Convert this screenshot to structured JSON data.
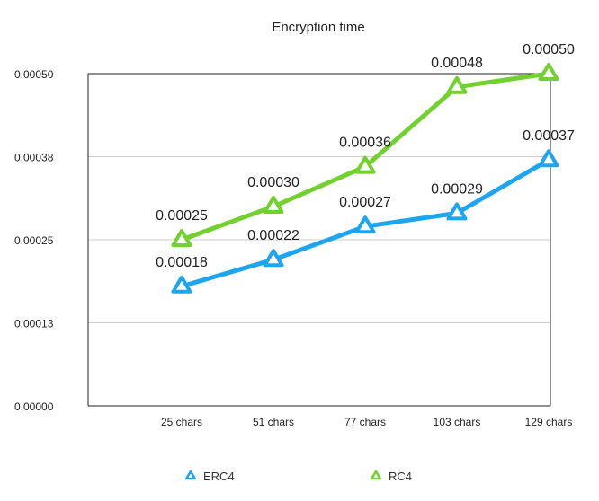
{
  "chart_data": {
    "type": "line",
    "title": "Encryption time",
    "xlabel": "",
    "ylabel": "",
    "categories": [
      "25 chars",
      "51 chars",
      "77 chars",
      "103 chars",
      "129 chars"
    ],
    "ylim": [
      0,
      0.0005
    ],
    "yticks": [
      "0.00000",
      "0.00013",
      "0.00025",
      "0.00038",
      "0.00050"
    ],
    "grid": true,
    "legend": "bottom",
    "series": [
      {
        "name": "ERC4",
        "color": "#1ea5f0",
        "marker": "triangle",
        "values": [
          0.00018,
          0.00022,
          0.00027,
          0.00029,
          0.00037
        ],
        "labels": [
          "0.00018",
          "0.00022",
          "0.00027",
          "0.00029",
          "0.00037"
        ]
      },
      {
        "name": "RC4",
        "color": "#72d12e",
        "marker": "triangle",
        "values": [
          0.00025,
          0.0003,
          0.00036,
          0.00048,
          0.0005
        ],
        "labels": [
          "0.00025",
          "0.00030",
          "0.00036",
          "0.00048",
          "0.00050"
        ]
      }
    ]
  }
}
